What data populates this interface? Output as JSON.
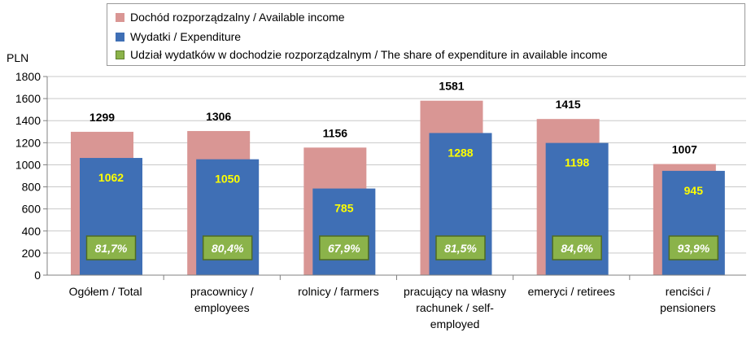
{
  "chart_data": {
    "type": "bar",
    "unit": "PLN",
    "categories": [
      "Ogółem / Total",
      "pracownicy / employees",
      "rolnicy / farmers",
      "pracujący na własny rachunek / self-employed",
      "emeryci / retirees",
      "renciści / pensioners"
    ],
    "category_lines": [
      [
        "Ogółem / Total"
      ],
      [
        "pracownicy /",
        "employees"
      ],
      [
        "rolnicy / farmers"
      ],
      [
        "pracujący na własny",
        "rachunek / self-",
        "employed"
      ],
      [
        "emeryci / retirees"
      ],
      [
        "renciści /",
        "pensioners"
      ]
    ],
    "series": [
      {
        "name": "Dochód rozporządzalny / Available income",
        "values": [
          1299,
          1306,
          1156,
          1581,
          1415,
          1007
        ],
        "color": "#d99694"
      },
      {
        "name": "Wydatki / Expenditure",
        "values": [
          1062,
          1050,
          785,
          1288,
          1198,
          945
        ],
        "color": "#3f6fb5"
      },
      {
        "name": "Udział wydatków w dochodzie rozporządzalnym / The share of expenditure in available income",
        "values": [
          "81,7%",
          "80,4%",
          "67,9%",
          "81,5%",
          "84,6%",
          "93,9%"
        ],
        "color": "#8bb34a"
      }
    ],
    "ylim": [
      0,
      1800
    ],
    "yticks": [
      "0",
      "200",
      "400",
      "600",
      "800",
      "1000",
      "1200",
      "1400",
      "1600",
      "1800"
    ],
    "grid": true,
    "legend_position": "top"
  }
}
